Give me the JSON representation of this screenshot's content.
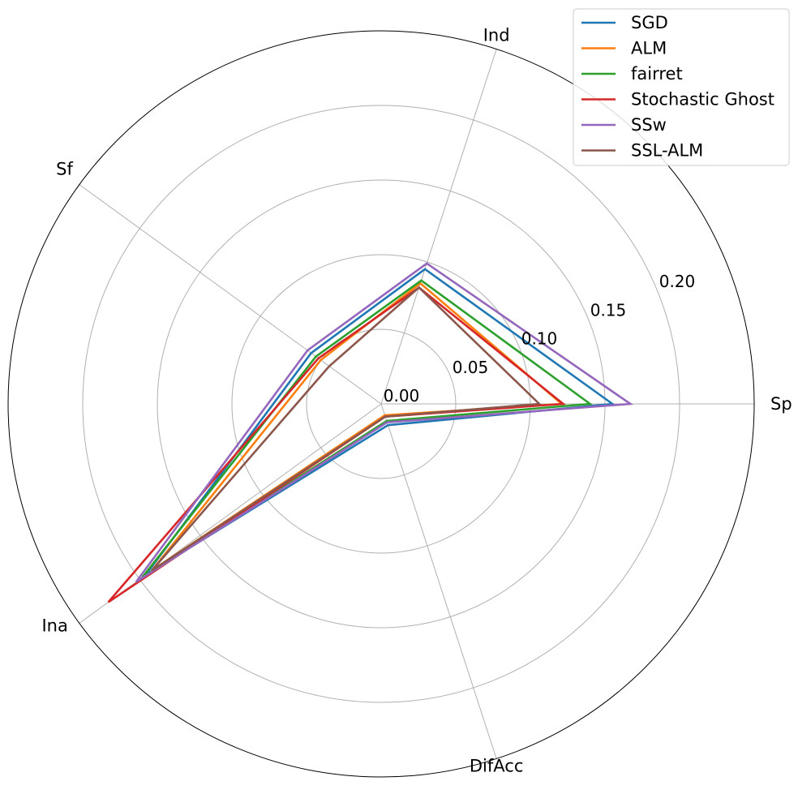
{
  "chart_data": {
    "type": "radar",
    "axes": [
      "Sp",
      "Ind",
      "Sf",
      "Ina",
      "DifAcc"
    ],
    "radial_ticks": [
      "0.00",
      "0.05",
      "0.10",
      "0.15",
      "0.20"
    ],
    "rlim": [
      0,
      0.25
    ],
    "grid": true,
    "legend_position": "top-right",
    "series": [
      {
        "name": "SGD",
        "color": "#1f77b4",
        "values": [
          0.155,
          0.095,
          0.058,
          0.195,
          0.015
        ]
      },
      {
        "name": "ALM",
        "color": "#ff7f0e",
        "values": [
          0.121,
          0.085,
          0.05,
          0.19,
          0.008
        ]
      },
      {
        "name": "fairret",
        "color": "#2ca02c",
        "values": [
          0.14,
          0.087,
          0.054,
          0.198,
          0.012
        ]
      },
      {
        "name": "Stochastic Ghost",
        "color": "#d62728",
        "values": [
          0.122,
          0.082,
          0.052,
          0.226,
          0.009
        ]
      },
      {
        "name": "SSw",
        "color": "#9467bd",
        "values": [
          0.167,
          0.099,
          0.061,
          0.203,
          0.013
        ]
      },
      {
        "name": "SSL-ALM",
        "color": "#8c564b",
        "values": [
          0.106,
          0.082,
          0.043,
          0.19,
          0.009
        ]
      }
    ]
  }
}
